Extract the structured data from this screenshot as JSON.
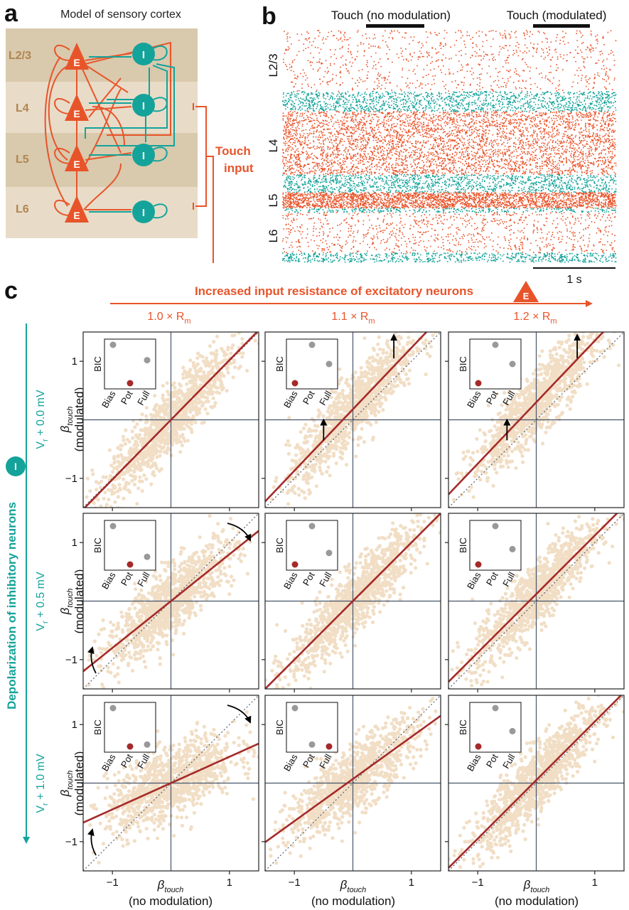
{
  "panel_labels": {
    "a": "a",
    "b": "b",
    "c": "c"
  },
  "panel_a": {
    "title": "Model of sensory cortex",
    "layers": [
      "L2/3",
      "L4",
      "L5",
      "L6"
    ],
    "exc_label": "E",
    "inh_label": "I",
    "touch_line1": "Touch",
    "touch_line2": "input",
    "colors": {
      "excitatory": "#e8542a",
      "inhibitory": "#14a39a",
      "layer_light": "#e8dcc8",
      "layer_dark": "#d9c9ad",
      "layer_text": "#b08550"
    }
  },
  "panel_b": {
    "touch1": "Touch (no modulation)",
    "touch2": "Touch (modulated)",
    "layers": [
      "L2/3",
      "L4",
      "L5",
      "L6"
    ],
    "scalebar": "1 s"
  },
  "panel_c": {
    "top_axis_title": "Increased input resistance of excitatory neurons",
    "top_axis_icon": "E",
    "col_labels": [
      {
        "main": "1.0 × R",
        "sub": "m"
      },
      {
        "main": "1.1 × R",
        "sub": "m"
      },
      {
        "main": "1.2 × R",
        "sub": "m"
      }
    ],
    "left_axis_title": "Depolarization of inhibitory neurons",
    "left_axis_icon": "I",
    "row_labels": [
      {
        "pre": "V",
        "sub": "r",
        "post": " + 0.0 mV"
      },
      {
        "pre": "V",
        "sub": "r",
        "post": " + 0.5 mV"
      },
      {
        "pre": "V",
        "sub": "r",
        "post": " + 1.0 mV"
      }
    ],
    "ylabel_sym": "β",
    "ylabel_sub": "touch",
    "ylabel_paren": "(modulated)",
    "xlabel_sym": "β",
    "xlabel_sub": "touch",
    "xlabel_paren": "(no modulation)",
    "ticks": [
      "−1",
      "1"
    ],
    "inset_ylabel": "BIC",
    "inset_xticks": [
      "Bias",
      "Pot",
      "Full"
    ]
  },
  "chart_data": [
    {
      "type": "scatter",
      "xlabel": "β_touch (no modulation)",
      "ylabel": "β_touch (modulated)",
      "xlim": [
        -1.5,
        1.5
      ],
      "ylim": [
        -1.5,
        1.5
      ],
      "xticks": [
        -1,
        1
      ],
      "yticks": [
        -1,
        1
      ],
      "identity_line": true,
      "panels": [
        {
          "row": 0,
          "col": 0,
          "fit_slope": 1.02,
          "fit_intercept": 0.0,
          "spread": 0.28,
          "best_model": "Pot",
          "bic": [
            1.0,
            0.0,
            0.6
          ],
          "arrows": []
        },
        {
          "row": 0,
          "col": 1,
          "fit_slope": 1.05,
          "fit_intercept": 0.18,
          "spread": 0.28,
          "best_model": "Bias",
          "bic": [
            0.0,
            1.0,
            0.5
          ],
          "arrows": [
            "up-low",
            "up-high"
          ]
        },
        {
          "row": 0,
          "col": 2,
          "fit_slope": 1.05,
          "fit_intercept": 0.3,
          "spread": 0.28,
          "best_model": "Bias",
          "bic": [
            0.0,
            1.0,
            0.5
          ],
          "arrows": [
            "up-low",
            "up-high"
          ]
        },
        {
          "row": 1,
          "col": 0,
          "fit_slope": 0.8,
          "fit_intercept": 0.0,
          "spread": 0.28,
          "best_model": "Pot",
          "bic": [
            1.0,
            0.0,
            0.2
          ],
          "arrows": [
            "rot-high",
            "rot-low"
          ]
        },
        {
          "row": 1,
          "col": 1,
          "fit_slope": 1.0,
          "fit_intercept": 0.0,
          "spread": 0.28,
          "best_model": "Bias",
          "bic": [
            0.0,
            1.0,
            0.3
          ],
          "arrows": []
        },
        {
          "row": 1,
          "col": 2,
          "fit_slope": 1.0,
          "fit_intercept": 0.12,
          "spread": 0.28,
          "best_model": "Bias",
          "bic": [
            0.0,
            1.0,
            0.4
          ],
          "arrows": []
        },
        {
          "row": 2,
          "col": 0,
          "fit_slope": 0.45,
          "fit_intercept": 0.0,
          "spread": 0.3,
          "best_model": "Pot",
          "bic": [
            1.0,
            0.0,
            0.05
          ],
          "arrows": [
            "rot-high",
            "rot-low"
          ]
        },
        {
          "row": 2,
          "col": 1,
          "fit_slope": 0.72,
          "fit_intercept": 0.07,
          "spread": 0.28,
          "best_model": "Full",
          "bic": [
            1.0,
            0.05,
            0.0
          ],
          "arrows": []
        },
        {
          "row": 2,
          "col": 2,
          "fit_slope": 1.0,
          "fit_intercept": 0.05,
          "spread": 0.28,
          "best_model": "Bias",
          "bic": [
            0.0,
            1.0,
            0.4
          ],
          "arrows": []
        }
      ]
    }
  ]
}
